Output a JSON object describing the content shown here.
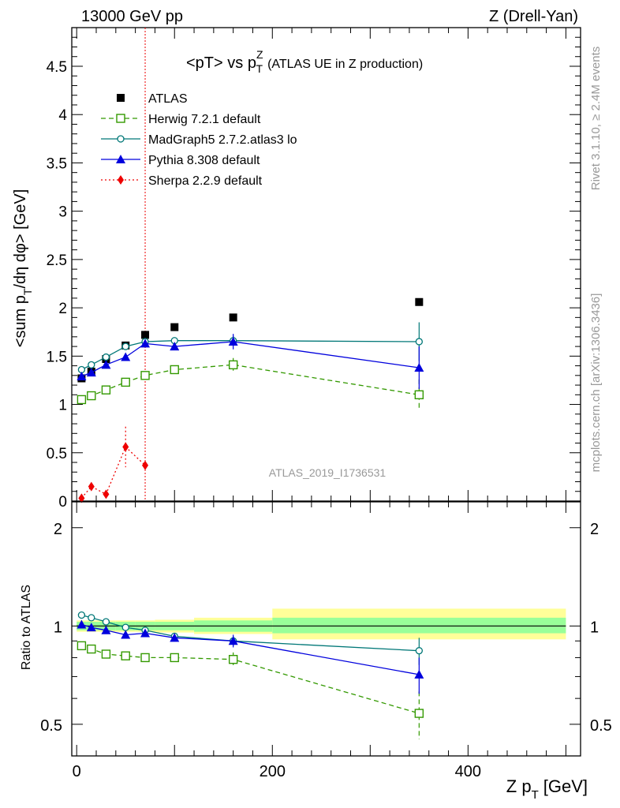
{
  "header": {
    "left": "13000 GeV pp",
    "right": "Z (Drell-Yan)"
  },
  "side_labels": {
    "rivet": "Rivet 3.1.10, ≥ 2.4M events",
    "mcplots": "mcplots.cern.ch [arXiv:1306.3436]"
  },
  "colors": {
    "atlas": "#000000",
    "herwig": "#339900",
    "madgraph": "#007777",
    "pythia": "#0000dd",
    "sherpa": "#ee0000",
    "band_inner": "#99ff99",
    "band_outer": "#ffff99"
  },
  "chart_data": [
    {
      "type": "scatter",
      "title": "<pT> vs pTZ (ATLAS UE in Z production)",
      "title_parts": {
        "main": "<pT> vs p",
        "sup": "Z",
        "sub": "T",
        "rest": "(ATLAS UE in Z production)"
      },
      "annotation": "ATLAS_2019_I1736531",
      "ylabel": "<sum p_T/dη dφ> [GeV]",
      "ylabel_parts": {
        "a": "<sum p",
        "sub": "T",
        "b": "/dη dφ> [GeV]"
      },
      "xlim": [
        -5,
        515
      ],
      "ylim": [
        0,
        4.9
      ],
      "yticks": [
        0,
        0.5,
        1,
        1.5,
        2,
        2.5,
        3,
        3.5,
        4,
        4.5
      ],
      "ytick_labels": [
        "0",
        "0.5",
        "1",
        "1.5",
        "2",
        "2.5",
        "3",
        "3.5",
        "4",
        "4.5"
      ],
      "vline_x": 70,
      "legend_placement": "top-left",
      "series": [
        {
          "name": "ATLAS",
          "key": "atlas",
          "marker": "square-filled",
          "line": "none",
          "x": [
            5,
            15,
            30,
            50,
            70,
            100,
            160,
            350
          ],
          "y": [
            1.27,
            1.34,
            1.47,
            1.61,
            1.72,
            1.8,
            1.9,
            2.06
          ],
          "err": [
            0.01,
            0.01,
            0.01,
            0.01,
            0.01,
            0.01,
            0.02,
            0.03
          ]
        },
        {
          "name": "Herwig 7.2.1 default",
          "key": "herwig",
          "marker": "square-open",
          "line": "dashed",
          "x": [
            5,
            15,
            30,
            50,
            70,
            100,
            160,
            350
          ],
          "y": [
            1.05,
            1.09,
            1.15,
            1.23,
            1.3,
            1.36,
            1.41,
            1.1
          ],
          "err": [
            0.01,
            0.01,
            0.01,
            0.02,
            0.02,
            0.02,
            0.07,
            0.16
          ]
        },
        {
          "name": "MadGraph5 2.7.2.atlas3 lo",
          "key": "madgraph",
          "marker": "circle-open",
          "line": "solid",
          "x": [
            5,
            15,
            30,
            50,
            70,
            100,
            160,
            350
          ],
          "y": [
            1.36,
            1.41,
            1.49,
            1.6,
            1.65,
            1.66,
            1.66,
            1.65
          ],
          "err": [
            0.01,
            0.01,
            0.01,
            0.02,
            0.02,
            0.02,
            0.05,
            0.2
          ]
        },
        {
          "name": "Pythia 8.308 default",
          "key": "pythia",
          "marker": "triangle-filled",
          "line": "solid",
          "x": [
            5,
            15,
            30,
            50,
            70,
            100,
            160,
            350
          ],
          "y": [
            1.29,
            1.33,
            1.41,
            1.49,
            1.63,
            1.6,
            1.65,
            1.38
          ],
          "err": [
            0.01,
            0.01,
            0.01,
            0.02,
            0.02,
            0.02,
            0.08,
            0.22
          ]
        },
        {
          "name": "Sherpa 2.2.9 default",
          "key": "sherpa",
          "marker": "diamond-filled",
          "line": "dotted",
          "x": [
            5,
            15,
            30,
            50,
            70
          ],
          "y": [
            0.03,
            0.15,
            0.07,
            0.56,
            0.37
          ],
          "err": [
            0.01,
            0.04,
            0.02,
            0.21,
            0.04
          ]
        }
      ]
    },
    {
      "type": "scatter",
      "xlabel": "Z pT [GeV]",
      "xlabel_parts": {
        "a": "Z p",
        "sub": "T",
        "b": "[GeV]"
      },
      "ylabel": "Ratio to ATLAS",
      "xlim": [
        -5,
        515
      ],
      "ylim": [
        0.4,
        2.4
      ],
      "yscale": "log",
      "yticks": [
        0.5,
        1,
        2
      ],
      "ytick_labels": [
        "0.5",
        "1",
        "2"
      ],
      "xticks": [
        0,
        200,
        400
      ],
      "xtick_labels": [
        "0",
        "200",
        "400"
      ],
      "bands": [
        {
          "x0": 0,
          "x1": 10,
          "inner": [
            0.97,
            1.03
          ],
          "outer": [
            0.96,
            1.04
          ]
        },
        {
          "x0": 10,
          "x1": 20,
          "inner": [
            0.97,
            1.03
          ],
          "outer": [
            0.96,
            1.04
          ]
        },
        {
          "x0": 20,
          "x1": 40,
          "inner": [
            0.97,
            1.03
          ],
          "outer": [
            0.96,
            1.04
          ]
        },
        {
          "x0": 40,
          "x1": 60,
          "inner": [
            0.97,
            1.03
          ],
          "outer": [
            0.96,
            1.04
          ]
        },
        {
          "x0": 60,
          "x1": 80,
          "inner": [
            0.97,
            1.03
          ],
          "outer": [
            0.96,
            1.04
          ]
        },
        {
          "x0": 80,
          "x1": 120,
          "inner": [
            0.97,
            1.03
          ],
          "outer": [
            0.955,
            1.045
          ]
        },
        {
          "x0": 120,
          "x1": 200,
          "inner": [
            0.96,
            1.04
          ],
          "outer": [
            0.945,
            1.06
          ]
        },
        {
          "x0": 200,
          "x1": 500,
          "inner": [
            0.95,
            1.06
          ],
          "outer": [
            0.91,
            1.13
          ]
        }
      ],
      "series": [
        {
          "name": "Herwig 7.2.1 default",
          "key": "herwig",
          "marker": "square-open",
          "line": "dashed",
          "x": [
            5,
            15,
            30,
            50,
            70,
            100,
            160,
            350
          ],
          "y": [
            0.87,
            0.85,
            0.82,
            0.81,
            0.8,
            0.8,
            0.79,
            0.54
          ],
          "err": [
            0.01,
            0.01,
            0.01,
            0.01,
            0.01,
            0.01,
            0.04,
            0.09
          ]
        },
        {
          "name": "MadGraph5 2.7.2.atlas3 lo",
          "key": "madgraph",
          "marker": "circle-open",
          "line": "solid",
          "x": [
            5,
            15,
            30,
            50,
            70,
            100,
            160,
            350
          ],
          "y": [
            1.08,
            1.06,
            1.03,
            0.99,
            0.97,
            0.93,
            0.9,
            0.84
          ],
          "err": [
            0.01,
            0.01,
            0.01,
            0.01,
            0.01,
            0.01,
            0.03,
            0.08
          ]
        },
        {
          "name": "Pythia 8.308 default",
          "key": "pythia",
          "marker": "triangle-filled",
          "line": "solid",
          "x": [
            5,
            15,
            30,
            50,
            70,
            100,
            160,
            350
          ],
          "y": [
            1.01,
            0.99,
            0.97,
            0.94,
            0.95,
            0.92,
            0.9,
            0.71
          ],
          "err": [
            0.01,
            0.01,
            0.01,
            0.01,
            0.01,
            0.01,
            0.04,
            0.09
          ]
        }
      ]
    }
  ]
}
